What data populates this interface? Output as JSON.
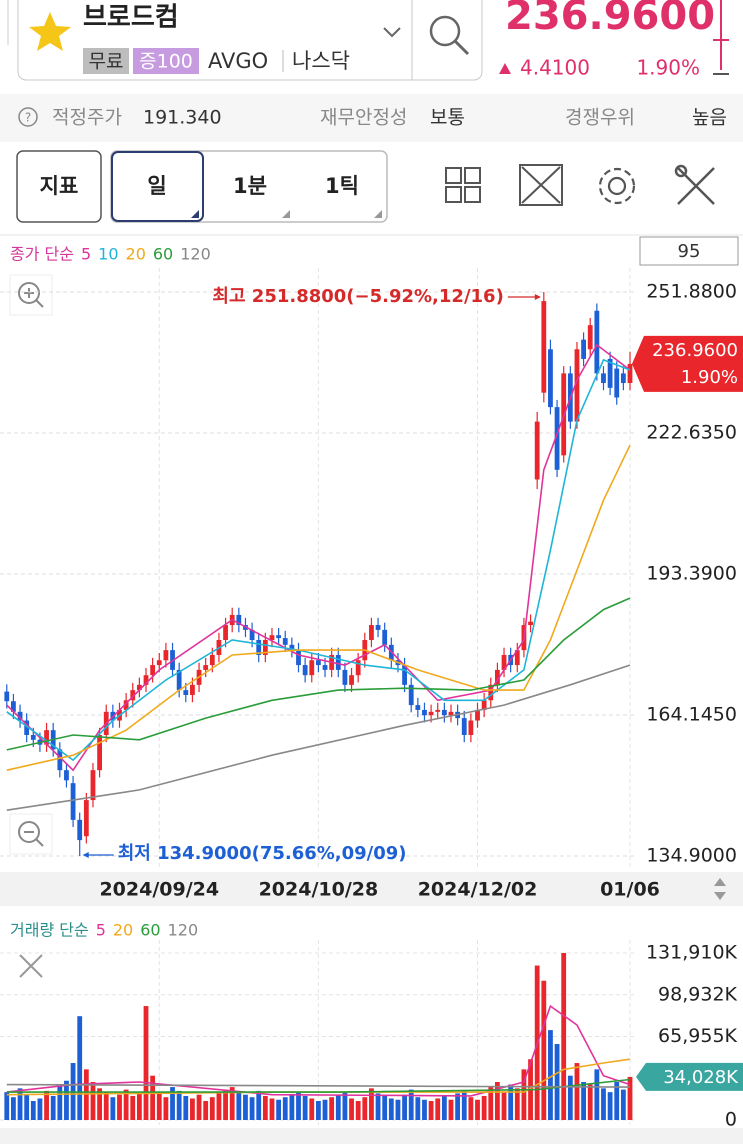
{
  "header": {
    "title": "브로드컴",
    "tags": [
      "무료",
      "증100",
      "AVGO",
      "나스닥"
    ],
    "price": "236.9600",
    "change": "4.4100",
    "change_pct": "1.90%"
  },
  "info": {
    "items": [
      {
        "label": "적정주가",
        "value": "191.340"
      },
      {
        "label": "재무안정성",
        "value": "보통"
      },
      {
        "label": "경쟁우위",
        "value": "높음"
      }
    ]
  },
  "toolbar": {
    "buttons": [
      "지표",
      "일",
      "1분",
      "1틱"
    ]
  },
  "chart_data": {
    "type": "candlestick",
    "ma_title": "종가 단순",
    "visible_count": 95,
    "categories": [
      null,
      null,
      null,
      null,
      null,
      null,
      null,
      null,
      null,
      null,
      null,
      null,
      null,
      null,
      null,
      null,
      null,
      null,
      null,
      null,
      null,
      null,
      null,
      "2024/09/24",
      null,
      null,
      null,
      null,
      null,
      null,
      null,
      null,
      null,
      null,
      null,
      null,
      null,
      null,
      null,
      null,
      null,
      null,
      null,
      null,
      null,
      null,
      null,
      "2024/10/28",
      null,
      null,
      null,
      null,
      null,
      null,
      null,
      null,
      null,
      null,
      null,
      null,
      null,
      null,
      null,
      null,
      null,
      null,
      null,
      null,
      null,
      null,
      null,
      "2024/12/02",
      null,
      null,
      null,
      null,
      null,
      null,
      null,
      null,
      null,
      null,
      null,
      null,
      null,
      null,
      null,
      null,
      null,
      null,
      null,
      null,
      null,
      null,
      "01/06"
    ],
    "ohlc": [
      [
        169,
        170.5,
        165.5,
        167
      ],
      [
        167,
        168.5,
        163.3,
        164.8
      ],
      [
        164.8,
        166.3,
        161.5,
        163
      ],
      [
        163,
        164.5,
        158.5,
        160
      ],
      [
        160,
        161.5,
        157.5,
        159
      ],
      [
        159,
        160.5,
        156.5,
        158
      ],
      [
        158,
        162.5,
        156.5,
        161
      ],
      [
        161,
        162.5,
        155.5,
        157
      ],
      [
        157,
        158.5,
        151.2,
        152.7
      ],
      [
        152.7,
        154.2,
        149.1,
        150.6
      ],
      [
        150,
        151.5,
        140.9,
        142.4
      ],
      [
        142.4,
        143.9,
        134.9,
        138.2
      ],
      [
        139,
        148,
        137.5,
        146.5
      ],
      [
        146.5,
        154.2,
        145,
        152.7
      ],
      [
        152.7,
        161.5,
        151.2,
        160
      ],
      [
        160,
        166.3,
        158.5,
        164.8
      ],
      [
        164.8,
        166.3,
        161.5,
        163
      ],
      [
        163,
        166.7,
        161.5,
        165.2
      ],
      [
        165.2,
        168.7,
        163.7,
        167.2
      ],
      [
        167.2,
        170.8,
        165.7,
        169.3
      ],
      [
        169.3,
        171.9,
        167.8,
        170.4
      ],
      [
        170.4,
        173.9,
        168.9,
        172.4
      ],
      [
        172.4,
        176,
        170.9,
        174.5
      ],
      [
        174.5,
        177,
        173,
        175.5
      ],
      [
        175.5,
        179.1,
        174,
        177.6
      ],
      [
        177.6,
        179.1,
        172,
        173.5
      ],
      [
        173.5,
        175,
        167.8,
        169.3
      ],
      [
        169.3,
        170.8,
        166.8,
        168.3
      ],
      [
        168.3,
        171.9,
        166.8,
        170.4
      ],
      [
        170.4,
        175,
        168.9,
        173.5
      ],
      [
        173.5,
        176,
        172,
        174.5
      ],
      [
        174.5,
        178.1,
        173,
        176.6
      ],
      [
        176.6,
        181.2,
        175.1,
        179.7
      ],
      [
        179.7,
        184.3,
        178.2,
        182.8
      ],
      [
        182.8,
        186.4,
        181.3,
        184.9
      ],
      [
        184.9,
        186.4,
        181.3,
        182.8
      ],
      [
        182.8,
        184.3,
        180.3,
        181.8
      ],
      [
        181.8,
        183.3,
        178.2,
        179.7
      ],
      [
        179.7,
        181.2,
        175.1,
        176.6
      ],
      [
        176.6,
        181.2,
        175.1,
        179.7
      ],
      [
        179.7,
        182.2,
        178.2,
        180.7
      ],
      [
        180.7,
        182.2,
        178.6,
        180.1
      ],
      [
        180.1,
        181.6,
        177.2,
        178.7
      ],
      [
        178.7,
        180.2,
        176.1,
        177.6
      ],
      [
        177.6,
        179.1,
        173,
        174.5
      ],
      [
        174.5,
        176,
        170.9,
        172.4
      ],
      [
        172.4,
        177,
        170.9,
        175.5
      ],
      [
        175.5,
        177,
        173,
        174.5
      ],
      [
        174.5,
        176,
        172,
        173.5
      ],
      [
        173.5,
        178.1,
        172,
        176.6
      ],
      [
        176.6,
        178.1,
        172,
        173.5
      ],
      [
        173.5,
        175,
        168.9,
        170.4
      ],
      [
        170.4,
        173.9,
        168.9,
        172.4
      ],
      [
        172.4,
        177,
        170.9,
        175.5
      ],
      [
        175.5,
        181.2,
        174,
        179.7
      ],
      [
        179.7,
        184.3,
        178.2,
        182.8
      ],
      [
        182.8,
        184.3,
        180.3,
        181.8
      ],
      [
        181.8,
        183.3,
        177.2,
        178.7
      ],
      [
        178.7,
        180.2,
        174,
        175.5
      ],
      [
        175.5,
        177,
        173,
        174.5
      ],
      [
        174.5,
        176,
        168.9,
        170.4
      ],
      [
        170.4,
        171.9,
        164.7,
        166.2
      ],
      [
        166.2,
        167.7,
        163.7,
        165.2
      ],
      [
        165.2,
        166.7,
        162.6,
        164.1
      ],
      [
        164.1,
        166.3,
        162.6,
        164.8
      ],
      [
        164.8,
        166.7,
        163.3,
        165.2
      ],
      [
        165.2,
        166.7,
        162.6,
        164.1
      ],
      [
        164.1,
        166.3,
        162.6,
        164.8
      ],
      [
        164.8,
        166.3,
        162,
        163.5
      ],
      [
        163.5,
        165,
        158.5,
        160
      ],
      [
        160,
        164.5,
        158.5,
        163
      ],
      [
        163,
        166.7,
        161.5,
        165.2
      ],
      [
        165.2,
        168.7,
        163.7,
        167.2
      ],
      [
        167.2,
        171.9,
        165.7,
        170.4
      ],
      [
        170.4,
        175,
        168.9,
        173.5
      ],
      [
        173.5,
        178.1,
        172,
        176.6
      ],
      [
        176.6,
        178.1,
        173,
        174.5
      ],
      [
        174.5,
        179.1,
        173,
        177.6
      ],
      [
        177.6,
        184.3,
        176.1,
        182.8
      ],
      [
        182.8,
        185,
        181.3,
        183.5
      ],
      [
        213,
        227,
        211,
        225
      ],
      [
        231,
        251.88,
        229,
        250
      ],
      [
        240,
        242,
        226.5,
        228
      ],
      [
        228,
        229.5,
        213.5,
        215
      ],
      [
        218,
        236.5,
        216.5,
        235
      ],
      [
        235,
        236.5,
        223.5,
        225
      ],
      [
        225,
        241.5,
        223.5,
        240
      ],
      [
        242,
        243.5,
        236.5,
        238
      ],
      [
        240,
        246.5,
        238.5,
        245
      ],
      [
        248,
        249.5,
        233.5,
        235
      ],
      [
        235,
        236.5,
        231.5,
        233
      ],
      [
        238,
        239.5,
        230.5,
        232
      ],
      [
        236,
        237.5,
        228.5,
        230
      ],
      [
        235,
        236.5,
        231.5,
        233
      ],
      [
        233,
        239.5,
        231.5,
        236.96
      ]
    ],
    "up_color": "#e8262b",
    "down_color": "#1d5fd4",
    "moving_averages": [
      {
        "name": "5",
        "color": "#e0339c",
        "x": [
          0,
          10,
          14,
          23,
          34,
          44,
          51,
          57,
          65,
          73,
          78,
          81,
          86,
          89,
          94
        ],
        "values": [
          166.2,
          152.7,
          161,
          173.5,
          183.9,
          176.6,
          174.5,
          178.7,
          167.2,
          169.3,
          179.7,
          215,
          233.6,
          240.9,
          235.7
        ]
      },
      {
        "name": "10",
        "color": "#1fb5d8",
        "x": [
          0,
          10,
          16,
          24,
          34,
          44,
          54,
          60,
          66,
          72,
          78,
          82,
          86,
          90,
          94
        ],
        "values": [
          164.8,
          154.8,
          163,
          171.4,
          179.7,
          177.6,
          174.5,
          173.5,
          167.2,
          167.2,
          173.5,
          198.3,
          225.3,
          237.8,
          235.7
        ]
      },
      {
        "name": "20",
        "color": "#f0a91c",
        "x": [
          0,
          10,
          18,
          26,
          34,
          44,
          54,
          62,
          72,
          78,
          82,
          86,
          90,
          94
        ],
        "values": [
          152.7,
          155.8,
          161,
          169.3,
          176.6,
          177.6,
          177.6,
          173.5,
          169.3,
          169.3,
          179.7,
          194.2,
          208.7,
          220.1
        ]
      },
      {
        "name": "60",
        "color": "#2a9d3a",
        "x": [
          0,
          10,
          20,
          30,
          40,
          50,
          60,
          70,
          78,
          84,
          90,
          94
        ],
        "values": [
          156.9,
          160,
          159,
          163.5,
          167.2,
          169.3,
          169.7,
          169.3,
          171.4,
          179.7,
          186,
          188.4
        ]
      },
      {
        "name": "120",
        "color": "#888888",
        "x": [
          0,
          20,
          40,
          60,
          75,
          85,
          94
        ],
        "values": [
          144.4,
          148.6,
          155.8,
          162,
          166.2,
          170.4,
          174.5
        ]
      }
    ],
    "ylim": [
      134.9,
      251.88
    ],
    "yticks": [
      {
        "value": 251.88,
        "label": "251.8800"
      },
      {
        "value": 222.635,
        "label": "222.6350"
      },
      {
        "value": 193.39,
        "label": "193.3900"
      },
      {
        "value": 164.145,
        "label": "164.1450"
      },
      {
        "value": 134.9,
        "label": "134.9000"
      }
    ],
    "grid": true,
    "high_annotation": "최고 251.8800(−5.92%,12/16)",
    "low_annotation": "최저 134.9000(75.66%,09/09)",
    "last_price_label": "236.9600",
    "last_change_label": "1.90%"
  },
  "volume_chart": {
    "type": "bar",
    "title": "거래량 단순",
    "values": [
      22000,
      18000,
      25000,
      20000,
      15000,
      17000,
      23000,
      19000,
      28000,
      31000,
      45000,
      82000,
      40000,
      30000,
      25000,
      22000,
      18000,
      20000,
      24000,
      19000,
      21000,
      90000,
      35000,
      22000,
      18000,
      26000,
      23000,
      19000,
      17000,
      20000,
      15000,
      18000,
      21000,
      24000,
      26000,
      22000,
      20000,
      18000,
      23000,
      19000,
      17000,
      16000,
      18000,
      20000,
      22000,
      19000,
      17000,
      15000,
      16000,
      18000,
      20000,
      22000,
      17000,
      15000,
      18000,
      25000,
      21000,
      19000,
      17000,
      16000,
      20000,
      24000,
      18000,
      16000,
      15000,
      17000,
      19000,
      16000,
      21000,
      23000,
      18000,
      16000,
      19000,
      26000,
      30000,
      22000,
      28000,
      25000,
      40000,
      48000,
      122000,
      110000,
      71000,
      60000,
      131910,
      35000,
      45000,
      30000,
      28000,
      40000,
      25000,
      22000,
      30000,
      24000,
      34028
    ],
    "last_label": "34,028K",
    "ylim": [
      0,
      131910
    ],
    "yticks": [
      {
        "value": 131910,
        "label": "131,910K"
      },
      {
        "value": 98932,
        "label": "98,932K"
      },
      {
        "value": 65955,
        "label": "65,955K"
      },
      0
    ],
    "moving_averages": [
      {
        "name": "5",
        "color": "#e0339c",
        "x": [
          0,
          10,
          20,
          40,
          70,
          78,
          82,
          86,
          90,
          94
        ],
        "values": [
          22000,
          28000,
          30000,
          20000,
          19000,
          30000,
          90000,
          75000,
          35000,
          28000
        ]
      },
      {
        "name": "20",
        "color": "#f0a91c",
        "x": [
          0,
          40,
          78,
          84,
          90,
          94
        ],
        "values": [
          20000,
          22000,
          22000,
          40000,
          45000,
          48000
        ]
      },
      {
        "name": "60",
        "color": "#2a9d3a",
        "x": [
          0,
          50,
          80,
          94
        ],
        "values": [
          22000,
          22000,
          24000,
          32000
        ]
      },
      {
        "name": "120",
        "color": "#888888",
        "x": [
          0,
          94
        ],
        "values": [
          28000,
          26000
        ]
      }
    ]
  }
}
